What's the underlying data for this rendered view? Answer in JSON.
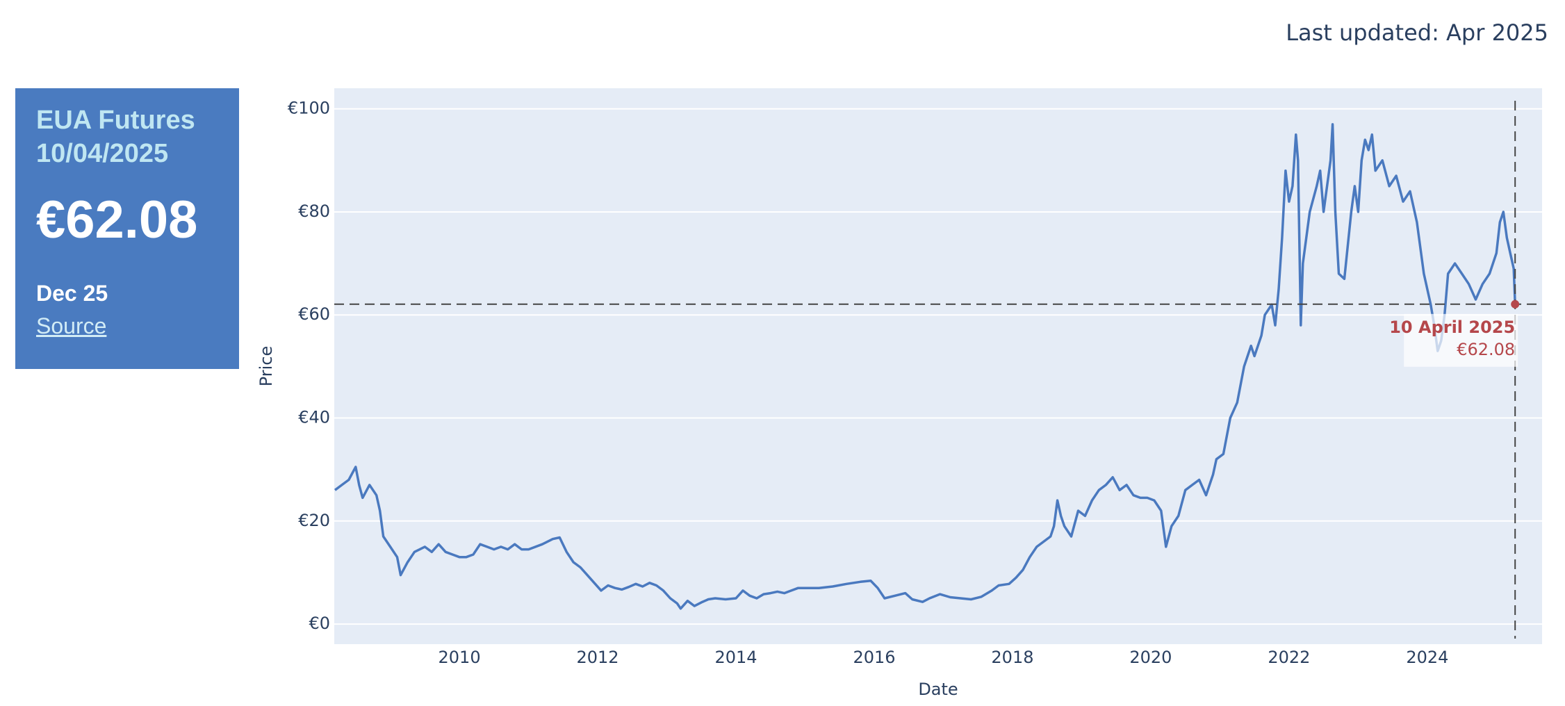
{
  "header": {
    "last_updated": "Last updated: Apr 2025"
  },
  "card": {
    "title": "EUA Futures",
    "date": "10/04/2025",
    "price": "€62.08",
    "contract": "Dec 25",
    "link": "Source"
  },
  "chart_data": {
    "type": "line",
    "xlabel": "Date",
    "ylabel": "Price",
    "color": "#4a79bf",
    "grid": true,
    "xlim": [
      2008.19,
      2025.66
    ],
    "ylim": [
      -3.9,
      104
    ],
    "xticks": [
      2010,
      2012,
      2014,
      2016,
      2018,
      2020,
      2022,
      2024
    ],
    "yticks": [
      {
        "value": 0,
        "label": "€0"
      },
      {
        "value": 20,
        "label": "€20"
      },
      {
        "value": 40,
        "label": "€40"
      },
      {
        "value": 60,
        "label": "€60"
      },
      {
        "value": 80,
        "label": "€80"
      },
      {
        "value": 100,
        "label": "€100"
      }
    ],
    "x": [
      2008.2,
      2008.3,
      2008.4,
      2008.5,
      2008.55,
      2008.6,
      2008.7,
      2008.8,
      2008.85,
      2008.9,
      2009.0,
      2009.1,
      2009.15,
      2009.25,
      2009.35,
      2009.5,
      2009.6,
      2009.7,
      2009.8,
      2009.9,
      2010.0,
      2010.1,
      2010.2,
      2010.3,
      2010.4,
      2010.5,
      2010.6,
      2010.7,
      2010.8,
      2010.9,
      2011.0,
      2011.2,
      2011.35,
      2011.45,
      2011.55,
      2011.65,
      2011.75,
      2011.85,
      2011.95,
      2012.05,
      2012.15,
      2012.25,
      2012.35,
      2012.45,
      2012.55,
      2012.65,
      2012.75,
      2012.85,
      2012.95,
      2013.05,
      2013.15,
      2013.2,
      2013.3,
      2013.4,
      2013.5,
      2013.6,
      2013.7,
      2013.85,
      2014.0,
      2014.1,
      2014.2,
      2014.3,
      2014.4,
      2014.5,
      2014.6,
      2014.7,
      2014.8,
      2014.9,
      2015.0,
      2015.2,
      2015.4,
      2015.6,
      2015.8,
      2015.95,
      2016.05,
      2016.15,
      2016.3,
      2016.45,
      2016.55,
      2016.7,
      2016.8,
      2016.95,
      2017.1,
      2017.25,
      2017.4,
      2017.55,
      2017.7,
      2017.8,
      2017.95,
      2018.05,
      2018.15,
      2018.25,
      2018.35,
      2018.45,
      2018.55,
      2018.6,
      2018.65,
      2018.7,
      2018.75,
      2018.85,
      2018.95,
      2019.05,
      2019.15,
      2019.25,
      2019.35,
      2019.45,
      2019.55,
      2019.65,
      2019.75,
      2019.85,
      2019.95,
      2020.05,
      2020.15,
      2020.22,
      2020.3,
      2020.4,
      2020.5,
      2020.6,
      2020.7,
      2020.8,
      2020.9,
      2020.95,
      2021.05,
      2021.15,
      2021.25,
      2021.35,
      2021.45,
      2021.5,
      2021.6,
      2021.65,
      2021.75,
      2021.8,
      2021.85,
      2021.9,
      2021.95,
      2022.0,
      2022.05,
      2022.1,
      2022.13,
      2022.17,
      2022.2,
      2022.3,
      2022.4,
      2022.45,
      2022.5,
      2022.55,
      2022.6,
      2022.63,
      2022.67,
      2022.72,
      2022.8,
      2022.9,
      2022.95,
      2023.0,
      2023.05,
      2023.1,
      2023.15,
      2023.2,
      2023.25,
      2023.35,
      2023.45,
      2023.55,
      2023.65,
      2023.75,
      2023.85,
      2023.95,
      2024.05,
      2024.1,
      2024.15,
      2024.2,
      2024.25,
      2024.3,
      2024.4,
      2024.5,
      2024.6,
      2024.7,
      2024.8,
      2024.9,
      2025.0,
      2025.05,
      2025.1,
      2025.15,
      2025.2,
      2025.25,
      2025.27
    ],
    "values": [
      26,
      27,
      28,
      30.5,
      27,
      24.5,
      27,
      25,
      22,
      17,
      15,
      13,
      9.5,
      12,
      14,
      15,
      14,
      15.5,
      14,
      13.5,
      13,
      13,
      13.5,
      15.5,
      15,
      14.5,
      15,
      14.5,
      15.5,
      14.5,
      14.5,
      15.5,
      16.5,
      16.8,
      14,
      12,
      11,
      9.5,
      8,
      6.5,
      7.5,
      7,
      6.7,
      7.2,
      7.8,
      7.3,
      8,
      7.5,
      6.5,
      5,
      4,
      3,
      4.5,
      3.5,
      4.2,
      4.8,
      5,
      4.8,
      5,
      6.5,
      5.5,
      5,
      5.8,
      6,
      6.3,
      6,
      6.5,
      7,
      7,
      7,
      7.3,
      7.8,
      8.2,
      8.4,
      7,
      5,
      5.5,
      6,
      4.8,
      4.3,
      5,
      5.8,
      5.2,
      5,
      4.8,
      5.3,
      6.5,
      7.5,
      7.8,
      9,
      10.5,
      13,
      15,
      16,
      17,
      19,
      24,
      21,
      19,
      17,
      22,
      21,
      24,
      26,
      27,
      28.5,
      26,
      27,
      25,
      24.5,
      24.5,
      24,
      22,
      15,
      19,
      21,
      26,
      27,
      28,
      25,
      29,
      32,
      33,
      40,
      43,
      50,
      54,
      52,
      56,
      60,
      62,
      58,
      65,
      75,
      88,
      82,
      85,
      95,
      90,
      58,
      70,
      80,
      85,
      88,
      80,
      85,
      90,
      97,
      80,
      68,
      67,
      80,
      85,
      80,
      90,
      94,
      92,
      95,
      88,
      90,
      85,
      87,
      82,
      84,
      78,
      68,
      62,
      58,
      53,
      55,
      60,
      68,
      70,
      68,
      66,
      63,
      66,
      68,
      72,
      78,
      80,
      75,
      72,
      69,
      62.08
    ],
    "crosshair": {
      "x": 2025.27,
      "y": 62.08,
      "color": "#b5474b"
    },
    "annotation": {
      "date": "10 April 2025",
      "price": "€62.08"
    }
  }
}
